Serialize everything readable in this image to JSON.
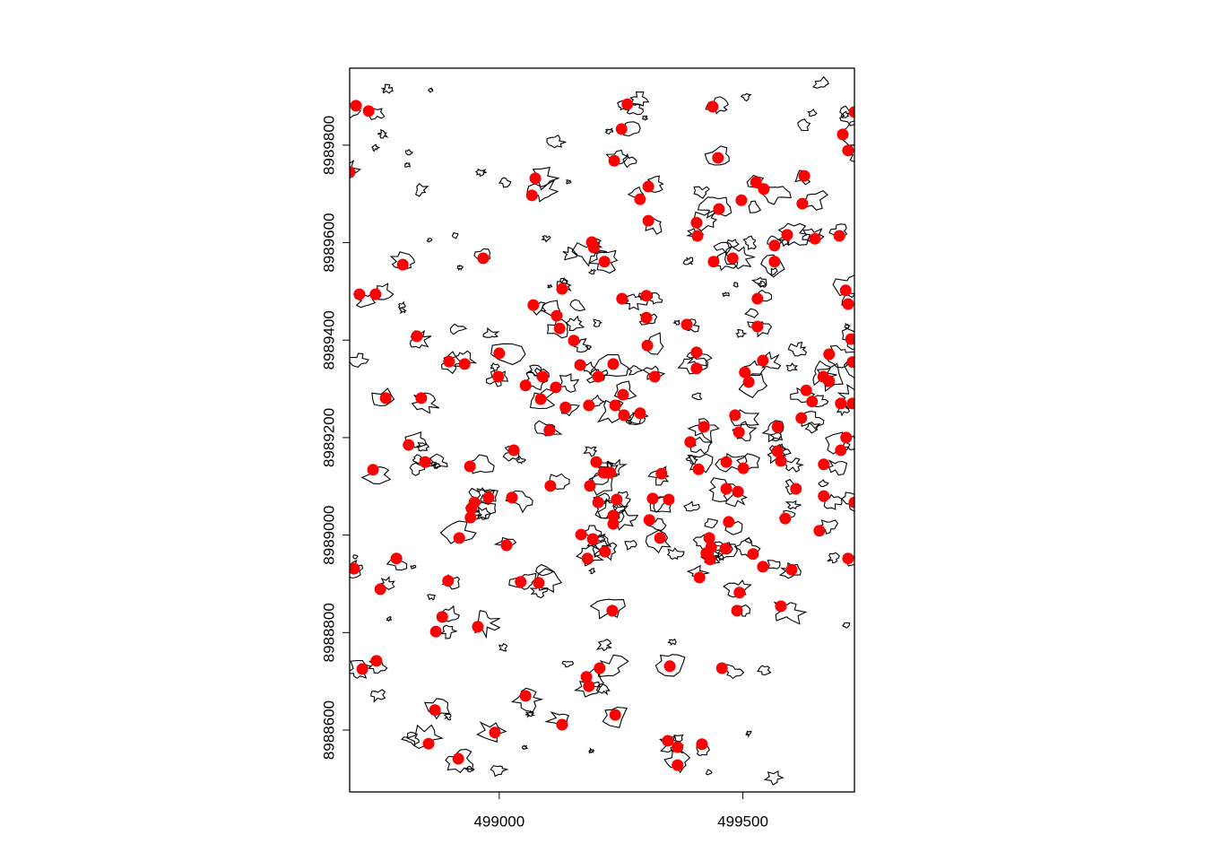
{
  "chart_data": {
    "type": "scatter",
    "color": "#ff0000",
    "xlim": [
      498693,
      499729
    ],
    "ylim": [
      8988473,
      8989958
    ],
    "xticks": [
      499000,
      499500
    ],
    "yticks": [
      8988600,
      8988800,
      8989000,
      8989200,
      8989400,
      8989600,
      8989800
    ],
    "x": [
      498706,
      498732,
      498693,
      498802,
      498713,
      498746,
      499074,
      499067,
      499263,
      499251,
      499236,
      499306,
      499289,
      499306,
      499438,
      499449,
      499451,
      499405,
      499407,
      499440,
      499479,
      499497,
      499527,
      499543,
      499626,
      499622,
      499591,
      499565,
      499565,
      499648,
      499698,
      499705,
      499716,
      499729,
      498967,
      499190,
      499194,
      499216,
      499070,
      499129,
      499118,
      499124,
      499153,
      499252,
      499302,
      499302,
      499304,
      499385,
      499405,
      499405,
      499530,
      499530,
      499541,
      499711,
      499716,
      499722,
      499677,
      499665,
      499677,
      499630,
      499642,
      499701,
      499725,
      499725,
      498831,
      498897,
      498929,
      499000,
      498998,
      498767,
      498840,
      499054,
      499089,
      499085,
      499116,
      499166,
      499203,
      499234,
      499254,
      499238,
      499184,
      499136,
      499103,
      499256,
      499289,
      499319,
      499392,
      499420,
      499484,
      499492,
      499504,
      499512,
      499571,
      499620,
      499712,
      499701,
      499666,
      499578,
      499571,
      498814,
      498848,
      498741,
      499030,
      498940,
      498949,
      498943,
      498941,
      498978,
      499026,
      499105,
      498918,
      499015,
      499199,
      499186,
      499214,
      499228,
      499219,
      499241,
      499203,
      499234,
      499234,
      499168,
      499192,
      499217,
      499181,
      499315,
      499348,
      499333,
      499409,
      499308,
      499330,
      499466,
      499466,
      499490,
      499501,
      499471,
      499431,
      499435,
      499425,
      499433,
      499464,
      499521,
      499541,
      499411,
      499609,
      499587,
      499666,
      499657,
      499716,
      499600,
      498702,
      498789,
      498756,
      498895,
      499044,
      499081,
      498883,
      498870,
      498956,
      499232,
      499493,
      499488,
      499578,
      498719,
      498748,
      499206,
      499179,
      499184,
      499350,
      499457,
      499054,
      498868,
      499238,
      499129,
      498991,
      498855,
      498916,
      499346,
      499366,
      499416,
      499366,
      499729
    ],
    "values": [
      8989881,
      8989870,
      8989745,
      8989555,
      8989494,
      8989494,
      8989732,
      8989697,
      8989884,
      8989833,
      8989768,
      8989715,
      8989689,
      8989645,
      8989879,
      8989774,
      8989669,
      8989641,
      8989614,
      8989561,
      8989568,
      8989687,
      8989724,
      8989710,
      8989737,
      8989680,
      8989616,
      8989594,
      8989561,
      8989608,
      8989614,
      8989822,
      8989789,
      8989868,
      8989568,
      8989601,
      8989590,
      8989561,
      8989472,
      8989505,
      8989450,
      8989424,
      8989399,
      8989485,
      8989491,
      8989446,
      8989389,
      8989432,
      8989375,
      8989342,
      8989485,
      8989428,
      8989358,
      8989502,
      8989474,
      8989402,
      8989371,
      8989325,
      8989316,
      8989297,
      8989274,
      8989270,
      8989270,
      8989355,
      8989408,
      8989356,
      8989351,
      8989373,
      8989325,
      8989281,
      8989281,
      8989307,
      8989325,
      8989279,
      8989303,
      8989349,
      8989325,
      8989351,
      8989288,
      8989266,
      8989266,
      8989262,
      8989215,
      8989246,
      8989250,
      8989325,
      8989191,
      8989222,
      8989246,
      8989211,
      8989334,
      8989314,
      8989222,
      8989240,
      8989200,
      8989174,
      8989145,
      8989152,
      8989172,
      8989185,
      8989150,
      8989134,
      8989174,
      8989141,
      8989067,
      8989055,
      8989036,
      8989077,
      8989077,
      8989101,
      8988994,
      8988979,
      8989150,
      8989101,
      8989128,
      8989128,
      8989128,
      8989073,
      8989067,
      8989040,
      8989023,
      8989001,
      8988992,
      8988966,
      8988952,
      8989075,
      8989073,
      8989126,
      8989135,
      8989031,
      8988994,
      8989150,
      8989095,
      8989089,
      8989137,
      8989027,
      8988994,
      8988975,
      8988963,
      8988950,
      8988972,
      8988961,
      8988935,
      8988913,
      8989095,
      8989034,
      8989080,
      8989009,
      8988952,
      8988929,
      8988931,
      8988952,
      8988889,
      8988906,
      8988904,
      8988902,
      8988832,
      8988802,
      8988812,
      8988845,
      8988882,
      8988845,
      8988854,
      8988725,
      8988742,
      8988727,
      8988709,
      8988690,
      8988731,
      8988727,
      8988670,
      8988641,
      8988631,
      8988611,
      8988595,
      8988572,
      8988541,
      8988578,
      8988565,
      8988571,
      8988528,
      8989067
    ]
  }
}
